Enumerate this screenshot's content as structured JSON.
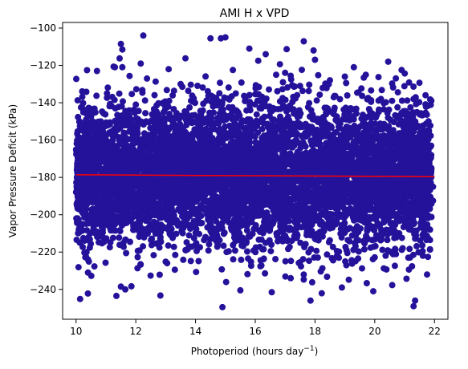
{
  "chart_data": {
    "type": "scatter",
    "title": "AMI H x VPD",
    "xlabel": "Photoperiod (hours day",
    "xlabel_sup": "−1",
    "xlabel_suffix": ")",
    "ylabel": "Vapor Pressure Deficit (kPa)",
    "xlim": [
      9.55,
      22.45
    ],
    "ylim": [
      -256,
      -97
    ],
    "xticks": [
      10,
      12,
      14,
      16,
      18,
      20,
      22
    ],
    "yticks": [
      -100,
      -120,
      -140,
      -160,
      -180,
      -200,
      -220,
      -240
    ],
    "ytick_labels": [
      "−100",
      "−120",
      "−140",
      "−160",
      "−180",
      "−200",
      "−220",
      "−240"
    ],
    "grid": false,
    "point_color": "#25129a",
    "trend_color": "#ff0000",
    "trend_line": {
      "x": [
        10.0,
        22.0
      ],
      "y": [
        -178.6,
        -179.6
      ]
    },
    "points_sampled": [
      [
        12.25,
        -104.0
      ],
      [
        14.5,
        -105.5
      ],
      [
        14.85,
        -105.5
      ],
      [
        15.0,
        -105.0
      ],
      [
        11.5,
        -108.5
      ],
      [
        11.55,
        -111.5
      ],
      [
        15.8,
        -111.0
      ],
      [
        16.35,
        -114.0
      ],
      [
        17.95,
        -112.0
      ],
      [
        11.3,
        -121.0
      ],
      [
        11.55,
        -121.0
      ],
      [
        10.7,
        -123.0
      ],
      [
        13.1,
        -122.0
      ],
      [
        15.25,
        -122.5
      ],
      [
        16.1,
        -117.5
      ],
      [
        17.0,
        -124.0
      ],
      [
        18.0,
        -117.0
      ],
      [
        19.7,
        -125.0
      ],
      [
        20.45,
        -118.0
      ],
      [
        19.3,
        -121.0
      ],
      [
        10.2,
        -160.0
      ],
      [
        10.1,
        -170.0
      ],
      [
        10.05,
        -178.0
      ],
      [
        10.1,
        -192.0
      ],
      [
        10.15,
        -208.0
      ],
      [
        10.35,
        -220.0
      ],
      [
        10.4,
        -231.0
      ],
      [
        10.4,
        -224.0
      ],
      [
        11.35,
        -243.5
      ],
      [
        11.5,
        -238.5
      ],
      [
        11.65,
        -240.0
      ],
      [
        14.9,
        -249.5
      ],
      [
        15.5,
        -240.5
      ],
      [
        16.55,
        -241.5
      ],
      [
        17.85,
        -246.0
      ],
      [
        18.9,
        -239.0
      ],
      [
        19.95,
        -241.0
      ],
      [
        21.3,
        -249.0
      ],
      [
        21.35,
        -246.0
      ],
      [
        21.75,
        -232.0
      ],
      [
        21.85,
        -218.5
      ],
      [
        21.85,
        -208.0
      ],
      [
        21.95,
        -192.5
      ],
      [
        21.95,
        -185.0
      ],
      [
        21.85,
        -169.0
      ],
      [
        21.8,
        -150.0
      ],
      [
        21.6,
        -160.0
      ],
      [
        21.3,
        -138.0
      ],
      [
        20.9,
        -122.5
      ],
      [
        20.75,
        -148.0
      ],
      [
        12.0,
        -141.0
      ],
      [
        13.5,
        -130.0
      ],
      [
        17.5,
        -131.0
      ],
      [
        18.5,
        -128.0
      ],
      [
        19.0,
        -126.0
      ],
      [
        16.7,
        -125.0
      ]
    ],
    "dense_core": {
      "x_center": 16.0,
      "x_sd": 3.0,
      "y_center": -179.0,
      "y_sd": 19.0,
      "x_range": [
        10.0,
        21.9
      ],
      "y_range": [
        -250.0,
        -104.0
      ]
    }
  }
}
